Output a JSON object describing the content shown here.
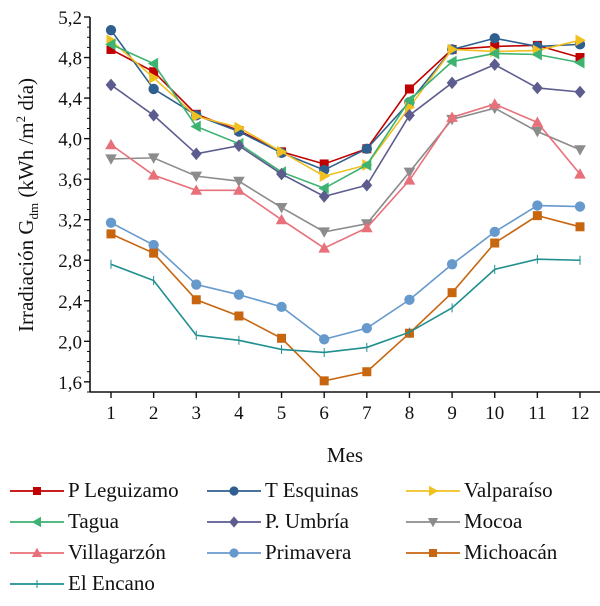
{
  "chart_data": {
    "type": "line",
    "title": "",
    "xlabel": "Mes",
    "ylabel": "Irradiación G",
    "ylabel_subscript": "dm",
    "ylabel_unit_prefix": " (kWh /m",
    "ylabel_unit_sup": "2",
    "ylabel_unit_suffix": " día)",
    "x": [
      1,
      2,
      3,
      4,
      5,
      6,
      7,
      8,
      9,
      10,
      11,
      12
    ],
    "x_tick_labels": [
      "1",
      "2",
      "3",
      "4",
      "5",
      "6",
      "7",
      "8",
      "9",
      "10",
      "11",
      "12"
    ],
    "xlim": [
      0.55,
      12.8
    ],
    "ylim": [
      1.5,
      5.2
    ],
    "y_ticks": [
      1.6,
      2.0,
      2.4,
      2.8,
      3.2,
      3.6,
      4.0,
      4.4,
      4.8,
      5.2
    ],
    "y_tick_labels": [
      "1,6",
      "2,0",
      "2,4",
      "2,8",
      "3,2",
      "3,6",
      "4,0",
      "4,4",
      "4,8",
      "5,2"
    ],
    "y_minor_step": 0.1,
    "grid": false,
    "legend_position": "bottom",
    "series": [
      {
        "name": "P Leguizamo",
        "color": "#c00000",
        "marker": "square",
        "values": [
          4.88,
          4.66,
          4.24,
          4.08,
          3.87,
          3.75,
          3.9,
          4.49,
          4.88,
          4.91,
          4.92,
          4.8
        ]
      },
      {
        "name": "T Esquinas",
        "color": "#2f5f8f",
        "marker": "circle",
        "values": [
          5.07,
          4.49,
          4.23,
          4.07,
          3.86,
          3.69,
          3.9,
          4.36,
          4.88,
          4.99,
          4.91,
          4.93
        ]
      },
      {
        "name": "Valparaíso",
        "color": "#f0c020",
        "marker": "triangle-right",
        "values": [
          4.97,
          4.6,
          4.22,
          4.11,
          3.87,
          3.63,
          3.74,
          4.31,
          4.88,
          4.86,
          4.87,
          4.97
        ]
      },
      {
        "name": "Tagua",
        "color": "#3cb371",
        "marker": "triangle-left",
        "values": [
          4.93,
          4.74,
          4.12,
          3.95,
          3.67,
          3.51,
          3.74,
          4.38,
          4.76,
          4.84,
          4.83,
          4.75
        ]
      },
      {
        "name": "P. Umbría",
        "color": "#5c5c8f",
        "marker": "diamond",
        "values": [
          4.53,
          4.23,
          3.85,
          3.93,
          3.65,
          3.43,
          3.54,
          4.23,
          4.55,
          4.73,
          4.5,
          4.46
        ]
      },
      {
        "name": "Mocoa",
        "color": "#8c8c8c",
        "marker": "triangle-down",
        "values": [
          3.8,
          3.81,
          3.63,
          3.58,
          3.32,
          3.08,
          3.16,
          3.67,
          4.19,
          4.3,
          4.07,
          3.89
        ]
      },
      {
        "name": "Villagarzón",
        "color": "#e8707a",
        "marker": "triangle-up",
        "values": [
          3.94,
          3.64,
          3.49,
          3.49,
          3.2,
          2.92,
          3.12,
          3.59,
          4.21,
          4.34,
          4.16,
          3.65
        ]
      },
      {
        "name": "Primavera",
        "color": "#6699cc",
        "marker": "circle",
        "values": [
          3.17,
          2.95,
          2.56,
          2.46,
          2.34,
          2.02,
          2.13,
          2.41,
          2.76,
          3.08,
          3.34,
          3.33
        ]
      },
      {
        "name": "Michoacán",
        "color": "#c8650f",
        "marker": "square",
        "values": [
          3.06,
          2.87,
          2.41,
          2.25,
          2.03,
          1.61,
          1.7,
          2.08,
          2.48,
          2.97,
          3.24,
          3.13
        ]
      },
      {
        "name": "El Encano",
        "color": "#1f8f8f",
        "marker": "plus",
        "values": [
          2.76,
          2.6,
          2.06,
          2.01,
          1.92,
          1.89,
          1.94,
          2.09,
          2.33,
          2.71,
          2.81,
          2.8
        ]
      }
    ]
  }
}
